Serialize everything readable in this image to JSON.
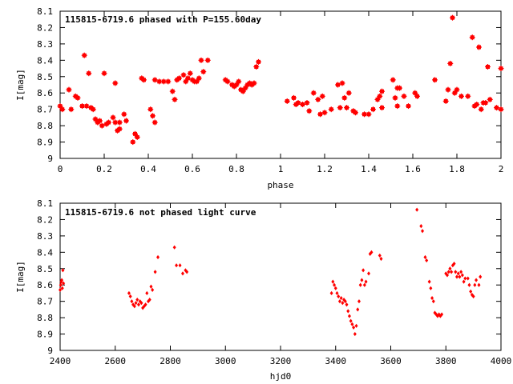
{
  "chart_data": [
    {
      "type": "scatter",
      "title": "115815-6719.6 phased with P=155.60day",
      "xlabel": "phase",
      "ylabel": "I[mag]",
      "xlim": [
        0,
        2
      ],
      "ylim": [
        8.1,
        9
      ],
      "y_inverted": true,
      "grid": false,
      "marker_color": "#ff0000",
      "x_ticks": [
        0,
        0.2,
        0.4,
        0.6,
        0.8,
        1,
        1.2,
        1.4,
        1.6,
        1.8,
        2
      ],
      "x_tick_labels": [
        "0",
        "0.2",
        "0.4",
        "0.6",
        "0.8",
        "1",
        "1.2",
        "1.4",
        "1.6",
        "1.8",
        "2"
      ],
      "y_ticks": [
        8.1,
        8.2,
        8.3,
        8.4,
        8.5,
        8.6,
        8.7,
        8.8,
        8.9,
        9
      ],
      "y_tick_labels": [
        "8.1",
        "8.2",
        "8.3",
        "8.4",
        "8.5",
        "8.6",
        "8.7",
        "8.8",
        "8.9",
        "9"
      ],
      "series": [
        {
          "points": [
            [
              0.0,
              8.68
            ],
            [
              0.01,
              8.7
            ],
            [
              0.04,
              8.58
            ],
            [
              0.05,
              8.7
            ],
            [
              0.07,
              8.62
            ],
            [
              0.08,
              8.63
            ],
            [
              0.1,
              8.68
            ],
            [
              0.11,
              8.37
            ],
            [
              0.12,
              8.68
            ],
            [
              0.13,
              8.48
            ],
            [
              0.14,
              8.69
            ],
            [
              0.15,
              8.7
            ],
            [
              0.16,
              8.76
            ],
            [
              0.17,
              8.78
            ],
            [
              0.18,
              8.77
            ],
            [
              0.19,
              8.8
            ],
            [
              0.2,
              8.48
            ],
            [
              0.21,
              8.79
            ],
            [
              0.22,
              8.78
            ],
            [
              0.24,
              8.75
            ],
            [
              0.25,
              8.54
            ],
            [
              0.25,
              8.78
            ],
            [
              0.26,
              8.83
            ],
            [
              0.27,
              8.82
            ],
            [
              0.27,
              8.78
            ],
            [
              0.29,
              8.73
            ],
            [
              0.3,
              8.77
            ],
            [
              0.33,
              8.9
            ],
            [
              0.34,
              8.85
            ],
            [
              0.35,
              8.87
            ],
            [
              0.37,
              8.51
            ],
            [
              0.38,
              8.52
            ],
            [
              0.41,
              8.7
            ],
            [
              0.42,
              8.74
            ],
            [
              0.43,
              8.78
            ],
            [
              0.43,
              8.52
            ],
            [
              0.45,
              8.53
            ],
            [
              0.47,
              8.53
            ],
            [
              0.49,
              8.53
            ],
            [
              0.51,
              8.59
            ],
            [
              0.52,
              8.64
            ],
            [
              0.53,
              8.52
            ],
            [
              0.54,
              8.51
            ],
            [
              0.56,
              8.49
            ],
            [
              0.57,
              8.53
            ],
            [
              0.58,
              8.51
            ],
            [
              0.59,
              8.48
            ],
            [
              0.6,
              8.52
            ],
            [
              0.61,
              8.53
            ],
            [
              0.62,
              8.53
            ],
            [
              0.63,
              8.51
            ],
            [
              0.64,
              8.4
            ],
            [
              0.65,
              8.47
            ],
            [
              0.67,
              8.4
            ],
            [
              0.75,
              8.52
            ],
            [
              0.76,
              8.53
            ],
            [
              0.78,
              8.55
            ],
            [
              0.79,
              8.56
            ],
            [
              0.8,
              8.55
            ],
            [
              0.81,
              8.53
            ],
            [
              0.82,
              8.58
            ],
            [
              0.83,
              8.59
            ],
            [
              0.84,
              8.57
            ],
            [
              0.85,
              8.55
            ],
            [
              0.86,
              8.54
            ],
            [
              0.87,
              8.55
            ],
            [
              0.88,
              8.54
            ],
            [
              0.89,
              8.44
            ],
            [
              0.9,
              8.41
            ],
            [
              1.03,
              8.65
            ],
            [
              1.06,
              8.63
            ],
            [
              1.07,
              8.67
            ],
            [
              1.08,
              8.66
            ],
            [
              1.1,
              8.67
            ],
            [
              1.12,
              8.66
            ],
            [
              1.13,
              8.71
            ],
            [
              1.15,
              8.6
            ],
            [
              1.17,
              8.64
            ],
            [
              1.18,
              8.73
            ],
            [
              1.19,
              8.62
            ],
            [
              1.2,
              8.72
            ],
            [
              1.23,
              8.7
            ],
            [
              1.26,
              8.55
            ],
            [
              1.27,
              8.69
            ],
            [
              1.28,
              8.54
            ],
            [
              1.29,
              8.63
            ],
            [
              1.3,
              8.69
            ],
            [
              1.31,
              8.6
            ],
            [
              1.33,
              8.71
            ],
            [
              1.34,
              8.72
            ],
            [
              1.38,
              8.73
            ],
            [
              1.4,
              8.73
            ],
            [
              1.42,
              8.7
            ],
            [
              1.44,
              8.64
            ],
            [
              1.45,
              8.62
            ],
            [
              1.46,
              8.59
            ],
            [
              1.46,
              8.69
            ],
            [
              1.51,
              8.52
            ],
            [
              1.52,
              8.63
            ],
            [
              1.53,
              8.57
            ],
            [
              1.53,
              8.68
            ],
            [
              1.54,
              8.57
            ],
            [
              1.56,
              8.62
            ],
            [
              1.58,
              8.68
            ],
            [
              1.61,
              8.6
            ],
            [
              1.62,
              8.62
            ],
            [
              1.7,
              8.52
            ],
            [
              1.75,
              8.65
            ],
            [
              1.76,
              8.58
            ],
            [
              1.77,
              8.42
            ],
            [
              1.78,
              8.14
            ],
            [
              1.79,
              8.6
            ],
            [
              1.8,
              8.58
            ],
            [
              1.82,
              8.62
            ],
            [
              1.85,
              8.62
            ],
            [
              1.87,
              8.26
            ],
            [
              1.88,
              8.68
            ],
            [
              1.89,
              8.67
            ],
            [
              1.9,
              8.32
            ],
            [
              1.91,
              8.7
            ],
            [
              1.92,
              8.66
            ],
            [
              1.93,
              8.66
            ],
            [
              1.94,
              8.44
            ],
            [
              1.95,
              8.64
            ],
            [
              1.98,
              8.69
            ],
            [
              2.0,
              8.7
            ],
            [
              2.0,
              8.45
            ]
          ]
        }
      ]
    },
    {
      "type": "scatter",
      "title": "115815-6719.6 not phased light curve",
      "xlabel": "hjd0",
      "ylabel": "I[mag]",
      "xlim": [
        2400,
        4000
      ],
      "ylim": [
        8.1,
        9
      ],
      "y_inverted": true,
      "grid": false,
      "marker_color": "#ff0000",
      "x_ticks": [
        2400,
        2600,
        2800,
        3000,
        3200,
        3400,
        3600,
        3800,
        4000
      ],
      "x_tick_labels": [
        "2400",
        "2600",
        "2800",
        "3000",
        "3200",
        "3400",
        "3600",
        "3800",
        "4000"
      ],
      "y_ticks": [
        8.1,
        8.2,
        8.3,
        8.4,
        8.5,
        8.6,
        8.7,
        8.8,
        8.9,
        9
      ],
      "y_tick_labels": [
        "8.1",
        "8.2",
        "8.3",
        "8.4",
        "8.5",
        "8.6",
        "8.7",
        "8.8",
        "8.9",
        "9"
      ],
      "series": [
        {
          "points": [
            [
              2400,
              8.63
            ],
            [
              2402,
              8.6
            ],
            [
              2404,
              8.58
            ],
            [
              2406,
              8.57
            ],
            [
              2408,
              8.62
            ],
            [
              2410,
              8.51
            ],
            [
              2412,
              8.59
            ],
            [
              2650,
              8.65
            ],
            [
              2655,
              8.67
            ],
            [
              2660,
              8.7
            ],
            [
              2665,
              8.72
            ],
            [
              2670,
              8.73
            ],
            [
              2675,
              8.71
            ],
            [
              2680,
              8.69
            ],
            [
              2685,
              8.72
            ],
            [
              2690,
              8.7
            ],
            [
              2695,
              8.71
            ],
            [
              2700,
              8.74
            ],
            [
              2705,
              8.73
            ],
            [
              2710,
              8.72
            ],
            [
              2715,
              8.65
            ],
            [
              2720,
              8.7
            ],
            [
              2725,
              8.69
            ],
            [
              2730,
              8.61
            ],
            [
              2735,
              8.63
            ],
            [
              2745,
              8.52
            ],
            [
              2755,
              8.43
            ],
            [
              2815,
              8.37
            ],
            [
              2822,
              8.48
            ],
            [
              2835,
              8.48
            ],
            [
              2845,
              8.53
            ],
            [
              2855,
              8.51
            ],
            [
              2860,
              8.52
            ],
            [
              3385,
              8.65
            ],
            [
              3390,
              8.58
            ],
            [
              3395,
              8.6
            ],
            [
              3400,
              8.62
            ],
            [
              3405,
              8.65
            ],
            [
              3410,
              8.67
            ],
            [
              3415,
              8.7
            ],
            [
              3420,
              8.68
            ],
            [
              3425,
              8.71
            ],
            [
              3430,
              8.69
            ],
            [
              3435,
              8.7
            ],
            [
              3440,
              8.72
            ],
            [
              3445,
              8.76
            ],
            [
              3450,
              8.79
            ],
            [
              3455,
              8.82
            ],
            [
              3460,
              8.84
            ],
            [
              3465,
              8.86
            ],
            [
              3470,
              8.9
            ],
            [
              3475,
              8.85
            ],
            [
              3480,
              8.75
            ],
            [
              3485,
              8.7
            ],
            [
              3490,
              8.6
            ],
            [
              3495,
              8.57
            ],
            [
              3500,
              8.51
            ],
            [
              3505,
              8.6
            ],
            [
              3510,
              8.58
            ],
            [
              3520,
              8.53
            ],
            [
              3525,
              8.41
            ],
            [
              3530,
              8.4
            ],
            [
              3560,
              8.42
            ],
            [
              3565,
              8.44
            ],
            [
              3695,
              8.14
            ],
            [
              3710,
              8.24
            ],
            [
              3715,
              8.27
            ],
            [
              3725,
              8.43
            ],
            [
              3730,
              8.45
            ],
            [
              3740,
              8.58
            ],
            [
              3745,
              8.62
            ],
            [
              3750,
              8.68
            ],
            [
              3755,
              8.7
            ],
            [
              3760,
              8.77
            ],
            [
              3765,
              8.78
            ],
            [
              3770,
              8.79
            ],
            [
              3775,
              8.78
            ],
            [
              3780,
              8.79
            ],
            [
              3785,
              8.78
            ],
            [
              3800,
              8.53
            ],
            [
              3805,
              8.54
            ],
            [
              3810,
              8.52
            ],
            [
              3815,
              8.5
            ],
            [
              3820,
              8.52
            ],
            [
              3825,
              8.48
            ],
            [
              3830,
              8.47
            ],
            [
              3835,
              8.52
            ],
            [
              3840,
              8.55
            ],
            [
              3845,
              8.53
            ],
            [
              3850,
              8.55
            ],
            [
              3855,
              8.52
            ],
            [
              3860,
              8.54
            ],
            [
              3865,
              8.58
            ],
            [
              3870,
              8.56
            ],
            [
              3880,
              8.56
            ],
            [
              3885,
              8.6
            ],
            [
              3890,
              8.64
            ],
            [
              3895,
              8.66
            ],
            [
              3900,
              8.67
            ],
            [
              3905,
              8.6
            ],
            [
              3910,
              8.57
            ],
            [
              3920,
              8.6
            ],
            [
              3925,
              8.55
            ]
          ]
        }
      ]
    }
  ]
}
